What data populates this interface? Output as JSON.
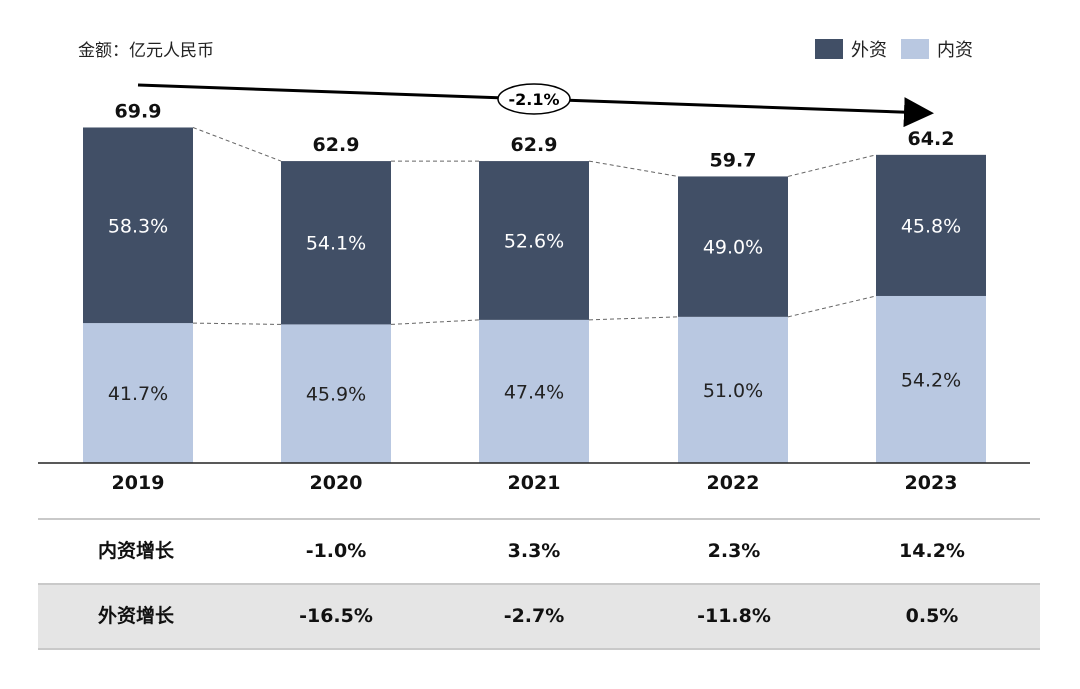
{
  "chart_data": {
    "type": "bar",
    "stacked": true,
    "unit_label": "金额：亿元人民币",
    "categories": [
      "2019",
      "2020",
      "2021",
      "2022",
      "2023"
    ],
    "totals": [
      69.9,
      62.9,
      62.9,
      59.7,
      64.2
    ],
    "series": [
      {
        "name": "外资",
        "color": "#414f66",
        "share_labels": [
          "58.3%",
          "54.1%",
          "52.6%",
          "49.0%",
          "45.8%"
        ],
        "shares": [
          58.3,
          54.1,
          52.6,
          49.0,
          45.8
        ]
      },
      {
        "name": "内资",
        "color": "#b9c8e1",
        "share_labels": [
          "41.7%",
          "45.9%",
          "47.4%",
          "51.0%",
          "54.2%"
        ],
        "shares": [
          41.7,
          45.9,
          47.4,
          51.0,
          54.2
        ]
      }
    ],
    "cagr_label": "-2.1%",
    "legend": "top-right",
    "grid": false
  },
  "growth_table": {
    "rows": [
      {
        "label": "内资增长",
        "values": [
          "-1.0%",
          "3.3%",
          "2.3%",
          "14.2%"
        ]
      },
      {
        "label": "外资增长",
        "values": [
          "-16.5%",
          "-2.7%",
          "-11.8%",
          "0.5%"
        ]
      }
    ]
  }
}
